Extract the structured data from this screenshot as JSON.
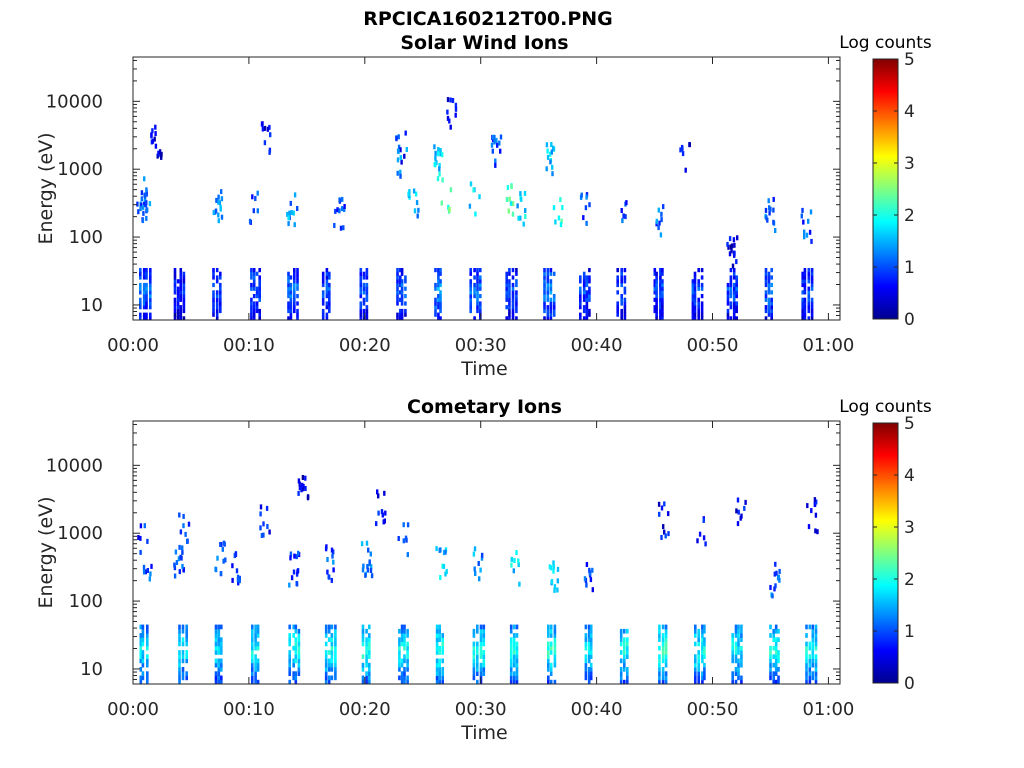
{
  "figure_title": "RPCICA160212T00.PNG",
  "colorbar_colors": [
    "#00008f",
    "#0000ff",
    "#0080ff",
    "#00ffff",
    "#80ff80",
    "#ffff00",
    "#ff8000",
    "#ff0000",
    "#800000"
  ],
  "chart_data": [
    {
      "type": "heatmap",
      "title": "Solar Wind Ions",
      "xlabel": "Time",
      "ylabel": "Energy (eV)",
      "x_ticks": [
        "00:00",
        "00:10",
        "00:20",
        "00:30",
        "00:40",
        "00:50",
        "01:00"
      ],
      "x_range_min": [
        0,
        61
      ],
      "y_scale": "log",
      "y_range_eV": [
        6,
        45000
      ],
      "y_ticks": [
        "10",
        "100",
        "1000",
        "10000"
      ],
      "colorbar": {
        "label": "Log counts",
        "range": [
          0,
          5
        ],
        "ticks": [
          "0",
          "1",
          "2",
          "3",
          "4",
          "5"
        ]
      },
      "scan_times_min": [
        1.0,
        4.0,
        7.3,
        10.5,
        13.7,
        16.8,
        20.0,
        23.1,
        26.4,
        29.5,
        32.6,
        35.9,
        39.0,
        42.2,
        45.3,
        48.6,
        51.7,
        54.9,
        58.1
      ],
      "low_band_eV": [
        6,
        35
      ],
      "low_band_log_counts": [
        1.2,
        0.8,
        1.0,
        1.1,
        1.2,
        1.0,
        1.0,
        1.1,
        1.4,
        1.2,
        1.0,
        1.3,
        1.0,
        1.0,
        1.0,
        1.0,
        1.0,
        1.2,
        1.0
      ],
      "high_band_points": [
        {
          "t": 0.8,
          "e": 300,
          "c": 1.0
        },
        {
          "t": 1.0,
          "e": 400,
          "c": 1.1
        },
        {
          "t": 2.0,
          "e": 2600,
          "c": 0.5
        },
        {
          "t": 7.3,
          "e": 300,
          "c": 1.4
        },
        {
          "t": 10.5,
          "e": 250,
          "c": 1.0
        },
        {
          "t": 11.5,
          "e": 3000,
          "c": 0.5
        },
        {
          "t": 13.7,
          "e": 250,
          "c": 1.4
        },
        {
          "t": 17.8,
          "e": 200,
          "c": 1.0
        },
        {
          "t": 23.1,
          "e": 2200,
          "c": 0.8
        },
        {
          "t": 23.2,
          "e": 1200,
          "c": 1.2
        },
        {
          "t": 24.2,
          "e": 300,
          "c": 1.5
        },
        {
          "t": 26.4,
          "e": 1200,
          "c": 1.7
        },
        {
          "t": 27.0,
          "e": 400,
          "c": 2.2
        },
        {
          "t": 27.5,
          "e": 6000,
          "c": 0.6
        },
        {
          "t": 29.5,
          "e": 350,
          "c": 1.6
        },
        {
          "t": 31.4,
          "e": 1700,
          "c": 1.0
        },
        {
          "t": 32.6,
          "e": 350,
          "c": 2.1
        },
        {
          "t": 33.4,
          "e": 250,
          "c": 1.7
        },
        {
          "t": 35.9,
          "e": 1300,
          "c": 1.6
        },
        {
          "t": 36.6,
          "e": 250,
          "c": 2.0
        },
        {
          "t": 39.0,
          "e": 250,
          "c": 1.0
        },
        {
          "t": 42.2,
          "e": 200,
          "c": 1.0
        },
        {
          "t": 45.3,
          "e": 180,
          "c": 1.1
        },
        {
          "t": 47.6,
          "e": 1500,
          "c": 0.5
        },
        {
          "t": 51.7,
          "e": 60,
          "c": 0.5
        },
        {
          "t": 55.0,
          "e": 200,
          "c": 1.1
        },
        {
          "t": 58.1,
          "e": 150,
          "c": 1.0
        }
      ]
    },
    {
      "type": "heatmap",
      "title": "Cometary Ions",
      "xlabel": "Time",
      "ylabel": "Energy (eV)",
      "x_ticks": [
        "00:00",
        "00:10",
        "00:20",
        "00:30",
        "00:40",
        "00:50",
        "01:00"
      ],
      "x_range_min": [
        0,
        61
      ],
      "y_scale": "log",
      "y_range_eV": [
        6,
        45000
      ],
      "y_ticks": [
        "10",
        "100",
        "1000",
        "10000"
      ],
      "colorbar": {
        "label": "Log counts",
        "range": [
          0,
          5
        ],
        "ticks": [
          "0",
          "1",
          "2",
          "3",
          "4",
          "5"
        ]
      },
      "scan_times_min": [
        1.0,
        4.4,
        7.5,
        10.6,
        13.9,
        17.0,
        20.2,
        23.3,
        26.6,
        29.8,
        33.0,
        36.2,
        39.4,
        42.5,
        45.8,
        48.9,
        52.1,
        55.3,
        58.5
      ],
      "low_band_eV": [
        6,
        45
      ],
      "low_band_log_counts": [
        1.8,
        1.9,
        1.8,
        1.9,
        2.0,
        2.0,
        2.1,
        1.9,
        2.1,
        2.0,
        2.0,
        2.1,
        1.9,
        2.0,
        2.2,
        2.0,
        1.9,
        2.0,
        2.0
      ],
      "high_band_points": [
        {
          "t": 0.8,
          "e": 800,
          "c": 0.8
        },
        {
          "t": 1.3,
          "e": 300,
          "c": 1.0
        },
        {
          "t": 4.4,
          "e": 1200,
          "c": 0.9
        },
        {
          "t": 4.0,
          "e": 350,
          "c": 1.0
        },
        {
          "t": 7.5,
          "e": 400,
          "c": 1.1
        },
        {
          "t": 8.8,
          "e": 300,
          "c": 0.9
        },
        {
          "t": 11.4,
          "e": 1500,
          "c": 0.8
        },
        {
          "t": 13.9,
          "e": 300,
          "c": 1.0
        },
        {
          "t": 14.7,
          "e": 4000,
          "c": 0.5
        },
        {
          "t": 17.0,
          "e": 350,
          "c": 1.0
        },
        {
          "t": 20.2,
          "e": 400,
          "c": 1.2
        },
        {
          "t": 21.4,
          "e": 2300,
          "c": 0.6
        },
        {
          "t": 23.3,
          "e": 800,
          "c": 1.0
        },
        {
          "t": 26.6,
          "e": 350,
          "c": 1.6
        },
        {
          "t": 29.8,
          "e": 350,
          "c": 1.3
        },
        {
          "t": 33.0,
          "e": 300,
          "c": 1.7
        },
        {
          "t": 36.2,
          "e": 250,
          "c": 1.8
        },
        {
          "t": 39.4,
          "e": 200,
          "c": 0.9
        },
        {
          "t": 45.8,
          "e": 1500,
          "c": 0.6
        },
        {
          "t": 49.0,
          "e": 1200,
          "c": 0.7
        },
        {
          "t": 52.4,
          "e": 2300,
          "c": 0.6
        },
        {
          "t": 55.4,
          "e": 200,
          "c": 1.1
        },
        {
          "t": 58.6,
          "e": 1800,
          "c": 0.5
        }
      ]
    }
  ]
}
